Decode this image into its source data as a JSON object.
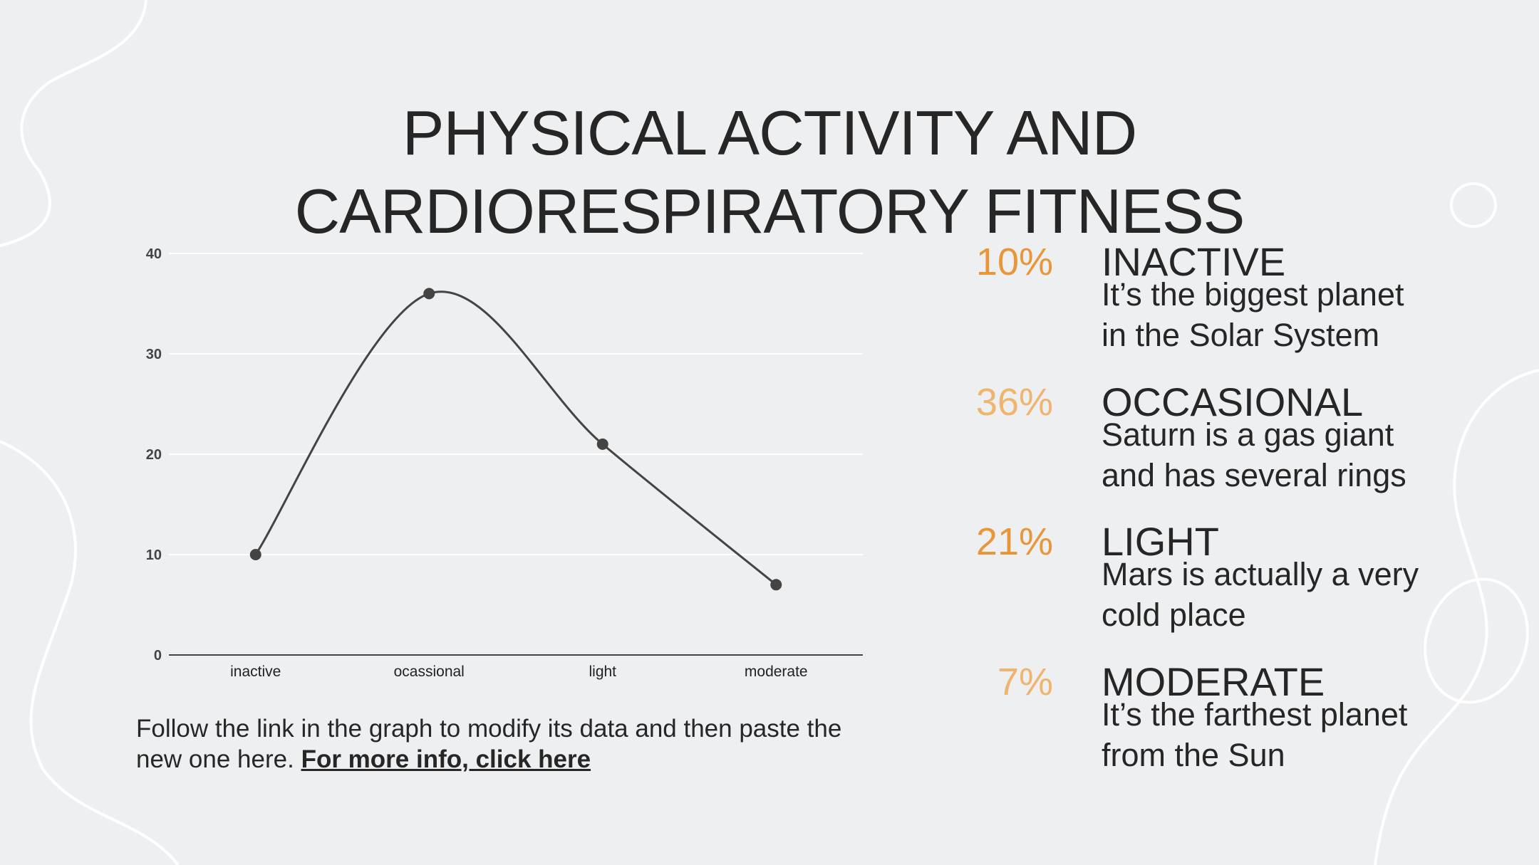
{
  "title_lines": [
    "PHYSICAL ACTIVITY AND",
    "CARDIORESPIRATORY FITNESS"
  ],
  "caption": {
    "text": "Follow the link in the graph to modify its data and then paste the new one here. ",
    "link": "For more info, click here"
  },
  "stats": [
    {
      "pct": "10%",
      "label": "INACTIVE",
      "desc": "It’s the biggest planet in the Solar System",
      "color": "#e8963a"
    },
    {
      "pct": "36%",
      "label": "OCCASIONAL",
      "desc": "Saturn is a gas giant and has several rings",
      "color": "#efb46d"
    },
    {
      "pct": "21%",
      "label": "LIGHT",
      "desc": "Mars is actually a very cold place",
      "color": "#e8963a"
    },
    {
      "pct": "7%",
      "label": "MODERATE",
      "desc": "It’s the farthest planet from the Sun",
      "color": "#efb46d"
    }
  ],
  "colors": {
    "background": "#eeeff1",
    "text": "#262626",
    "line": "#444444",
    "accent_dark": "#e8963a",
    "accent_light": "#efb46d"
  },
  "chart_data": {
    "type": "line",
    "categories": [
      "inactive",
      "ocassional",
      "light",
      "moderate"
    ],
    "values": [
      10,
      36,
      21,
      7
    ],
    "ylim": [
      0,
      40
    ],
    "yticks": [
      0,
      10,
      20,
      30,
      40
    ],
    "title": "",
    "xlabel": "",
    "ylabel": "",
    "grid": true,
    "smooth": true
  }
}
